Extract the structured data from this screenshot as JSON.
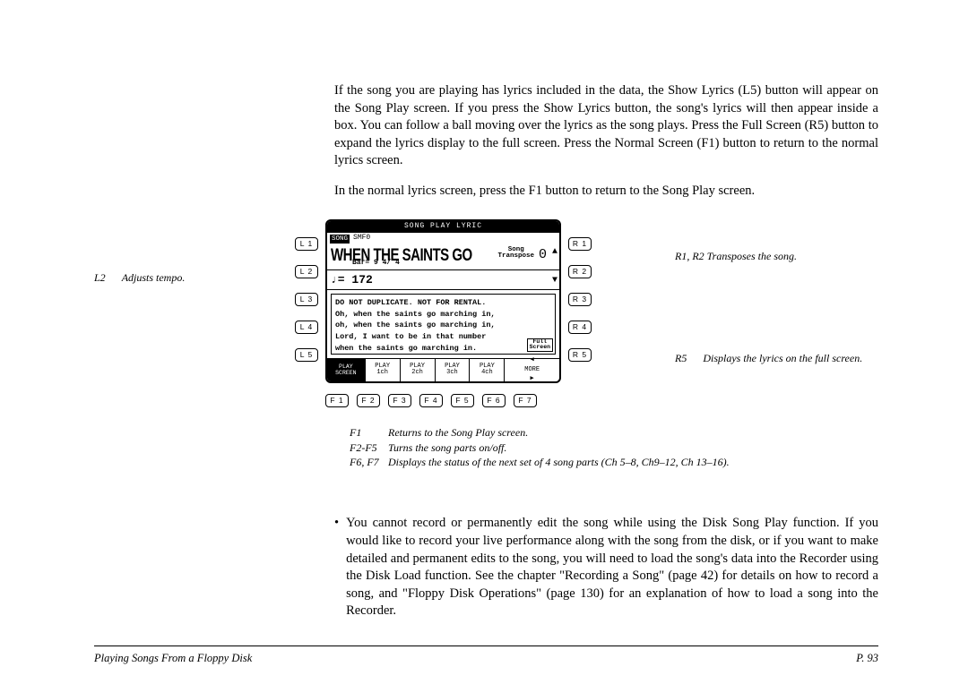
{
  "para1": "If the song you are playing has lyrics included in the data, the Show Lyrics (L5) button will appear on the Song Play screen.  If you press the Show Lyrics button, the song's lyrics will then appear inside a box.  You can follow a ball moving over the lyrics as the song plays.  Press the Full Screen (R5) button to expand the lyrics display to the full screen.  Press the Normal Screen (F1) button to return to the normal lyrics screen.",
  "para2": "In the normal lyrics screen, press the F1 button to return to the Song Play screen.",
  "left_annot": {
    "key": "L2",
    "text": "Adjusts tempo."
  },
  "right_annot_1": "R1, R2 Transposes the song.",
  "right_annot_2": {
    "key": "R5",
    "text": "Displays the lyrics on the full screen."
  },
  "bottom_annot": [
    {
      "k": "F1",
      "t": "Returns to the Song Play screen."
    },
    {
      "k": "F2-F5",
      "t": "Turns the song parts on/off."
    },
    {
      "k": "F6, F7",
      "t": "Displays the status of the next set of 4 song parts (Ch 5–8, Ch9–12, Ch 13–16)."
    }
  ],
  "side_left": [
    "L 1",
    "L 2",
    "L 3",
    "L 4",
    "L 5"
  ],
  "side_right": [
    "R 1",
    "R 2",
    "R 3",
    "R 4",
    "R 5"
  ],
  "f_buttons": [
    "F 1",
    "F 2",
    "F 3",
    "F 4",
    "F 5",
    "F 6",
    "F 7"
  ],
  "lcd": {
    "title": "SONG PLAY LYRIC",
    "song_label": "SONG",
    "song_file": "SMF0",
    "song_title": "WHEN THE SAINTS GO",
    "bar": "Bar=    9  4/ 4",
    "transpose_label1": "Song",
    "transpose_label2": "Transpose",
    "transpose_val": "0",
    "tempo": "♩= 172",
    "lyrics": [
      "DO NOT DUPLICATE.  NOT FOR RENTAL.",
      "Oh, when the saints go marching in,",
      "oh, when the saints go marching in,",
      "Lord, I want to be in that number",
      "when the saints go marching in."
    ],
    "full_screen": "Full\nScreen",
    "bottom_first": "PLAY\nSCREEN",
    "bottom_cells": [
      {
        "top": "PLAY",
        "bot": "1ch"
      },
      {
        "top": "PLAY",
        "bot": "2ch"
      },
      {
        "top": "PLAY",
        "bot": "3ch"
      },
      {
        "top": "PLAY",
        "bot": "4ch"
      }
    ],
    "more": "MORE"
  },
  "bullet_para": "You cannot record or permanently edit the song while using the Disk Song Play function.  If you would like to record your live performance along with the song from the disk, or if you want to make detailed and permanent edits to the song, you will need to load the song's data into the Recorder using the Disk Load function.  See the chapter \"Recording a Song\" (page 42) for details on how to record a song, and \"Floppy Disk Operations\" (page 130) for an explanation of how to load a song into the Recorder.",
  "footer_left": "Playing Songs From a Floppy Disk",
  "footer_right": "P. 93"
}
